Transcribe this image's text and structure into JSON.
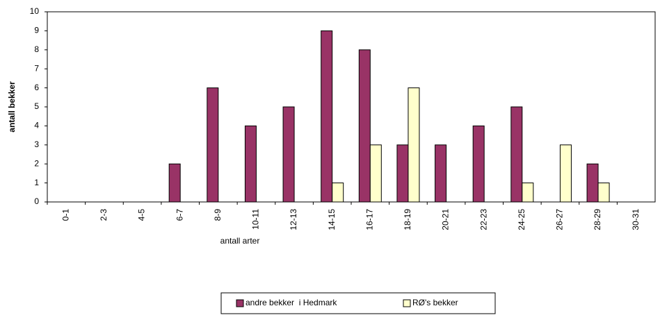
{
  "chart_data": {
    "type": "bar",
    "categories": [
      "0-1",
      "2-3",
      "4-5",
      "6-7",
      "8-9",
      "10-11",
      "12-13",
      "14-15",
      "16-17",
      "18-19",
      "20-21",
      "22-23",
      "24-25",
      "26-27",
      "28-29",
      "30-31"
    ],
    "series": [
      {
        "name": "andre bekker  i Hedmark",
        "color": "#993366",
        "values": [
          0,
          0,
          0,
          2,
          6,
          4,
          5,
          9,
          8,
          3,
          3,
          4,
          5,
          0,
          2,
          0
        ]
      },
      {
        "name": "RØ's bekker",
        "color": "#ffffcc",
        "values": [
          0,
          0,
          0,
          0,
          0,
          0,
          0,
          1,
          3,
          6,
          0,
          0,
          1,
          3,
          1,
          0
        ]
      }
    ],
    "ylim": [
      0,
      10
    ],
    "yticks": [
      0,
      1,
      2,
      3,
      4,
      5,
      6,
      7,
      8,
      9,
      10
    ],
    "x_label": "antall arter",
    "y_label": "antall bekker",
    "grid": false,
    "legend": "bottom"
  }
}
